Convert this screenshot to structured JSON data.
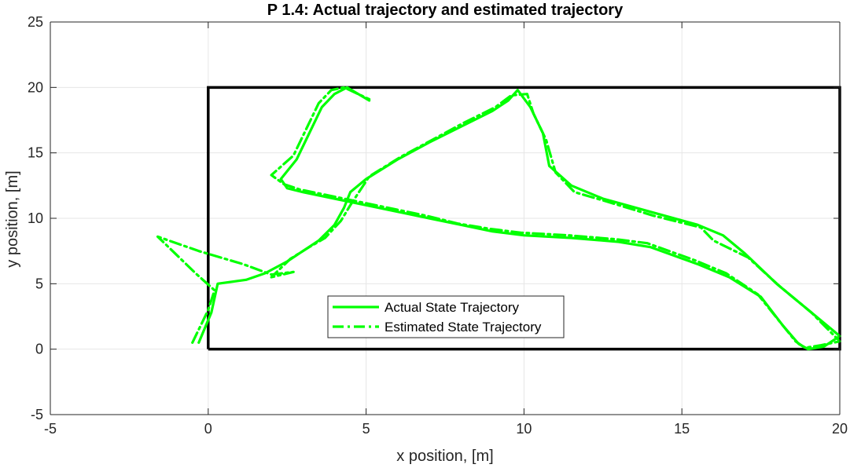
{
  "chart_data": {
    "type": "line",
    "title": "P 1.4: Actual trajectory and estimated trajectory",
    "xlabel": "x position, [m]",
    "ylabel": "y position, [m]",
    "xlim": [
      -5,
      20
    ],
    "ylim": [
      -5,
      25
    ],
    "xticks": [
      -5,
      0,
      5,
      10,
      15,
      20
    ],
    "yticks": [
      -5,
      0,
      5,
      10,
      15,
      20,
      25
    ],
    "xtick_labels": [
      "-5",
      "0",
      "5",
      "10",
      "15",
      "20"
    ],
    "ytick_labels": [
      "-5",
      "0",
      "5",
      "10",
      "15",
      "20",
      "25"
    ],
    "grid": true,
    "legend_position": "lower-center",
    "boundary": {
      "x": [
        0,
        20,
        20,
        0,
        0
      ],
      "y": [
        0,
        0,
        20,
        20,
        0
      ],
      "color": "#000000"
    },
    "series": [
      {
        "name": "Actual State Trajectory",
        "color": "#00ff00",
        "style": "solid",
        "x": [
          -0.3,
          0.1,
          0.3,
          1.2,
          1.8,
          2.5,
          3.0,
          3.5,
          4.0,
          4.3,
          4.5,
          5.0,
          6.0,
          7.0,
          8.0,
          9.0,
          9.5,
          9.8,
          10.2,
          10.6,
          10.8,
          11.5,
          12.5,
          14.0,
          15.5,
          16.3,
          17.0,
          18.0,
          19.0,
          20.0,
          19.5,
          19.0,
          18.7,
          18.2,
          17.5,
          16.5,
          15.5,
          14.0,
          13.0,
          11.5,
          10.0,
          9.0,
          8.0,
          7.0,
          6.0,
          5.0,
          4.0,
          3.0,
          2.5,
          2.3,
          2.8,
          3.1,
          3.3,
          3.6,
          4.0,
          4.4,
          5.1
        ],
        "y": [
          0.5,
          2.8,
          5.0,
          5.3,
          5.8,
          6.7,
          7.5,
          8.3,
          9.5,
          10.8,
          12.0,
          13.0,
          14.5,
          15.8,
          17.0,
          18.2,
          19.0,
          19.8,
          18.5,
          16.5,
          14.0,
          12.5,
          11.5,
          10.5,
          9.5,
          8.7,
          7.3,
          5.0,
          3.0,
          1.0,
          0.2,
          0.0,
          0.4,
          1.8,
          4.0,
          5.5,
          6.5,
          7.8,
          8.2,
          8.5,
          8.7,
          9.0,
          9.5,
          10.0,
          10.5,
          11.0,
          11.5,
          12.0,
          12.3,
          13.0,
          14.5,
          16.0,
          17.0,
          18.5,
          19.5,
          20.0,
          19.0
        ]
      },
      {
        "name": "Estimated State Trajectory",
        "color": "#00ff00",
        "style": "dashdot",
        "x": [
          -0.5,
          0.0,
          0.2,
          -0.4,
          -1.6,
          -0.3,
          1.1,
          2.0,
          2.7,
          2.0,
          2.6,
          3.2,
          3.7,
          4.2,
          4.5,
          5.1,
          6.1,
          7.1,
          8.1,
          9.1,
          9.6,
          10.1,
          10.3,
          10.7,
          11.0,
          11.6,
          12.6,
          14.1,
          15.6,
          16.0,
          17.1,
          18.1,
          19.1,
          20.0,
          19.4,
          18.9,
          18.6,
          18.1,
          17.4,
          16.4,
          15.4,
          13.9,
          12.9,
          11.4,
          9.9,
          8.9,
          7.9,
          6.9,
          5.9,
          4.9,
          3.9,
          2.9,
          2.4,
          2.0,
          2.7,
          3.0,
          3.2,
          3.5,
          3.9,
          4.3,
          5.1
        ],
        "y": [
          0.5,
          3.0,
          4.5,
          5.8,
          8.6,
          7.5,
          6.5,
          5.7,
          5.9,
          5.5,
          6.9,
          7.8,
          8.5,
          9.8,
          11.0,
          13.2,
          14.7,
          16.0,
          17.3,
          18.5,
          19.4,
          19.5,
          18.0,
          16.0,
          13.5,
          12.0,
          11.3,
          10.2,
          9.3,
          8.3,
          7.0,
          4.8,
          2.8,
          0.6,
          0.3,
          0.1,
          0.6,
          2.1,
          4.2,
          5.8,
          6.8,
          8.1,
          8.4,
          8.7,
          8.9,
          9.2,
          9.6,
          10.2,
          10.7,
          11.2,
          11.7,
          12.2,
          12.6,
          13.3,
          14.8,
          16.3,
          17.3,
          18.8,
          19.8,
          20.0,
          19.1
        ]
      }
    ]
  }
}
